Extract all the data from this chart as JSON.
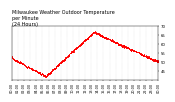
{
  "title": "Milwaukee Weather Outdoor Temperature\nper Minute\n(24 Hours)",
  "title_fontsize": 3.5,
  "dot_color": "#ff0000",
  "dot_size": 0.4,
  "background_color": "#ffffff",
  "tick_fontsize": 2.8,
  "ylim": [
    40,
    70
  ],
  "yticks": [
    45,
    50,
    55,
    60,
    65,
    70
  ],
  "num_points": 1440,
  "x_min": 0,
  "x_max": 1439,
  "grid_color": "#aaaaaa",
  "grid_alpha": 0.6
}
